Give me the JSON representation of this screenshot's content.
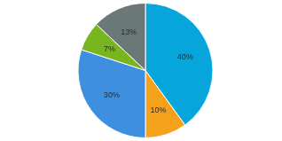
{
  "chart_data": {
    "type": "pie",
    "categories": [
      null,
      null,
      null,
      null,
      null
    ],
    "values": [
      40,
      10,
      30,
      7,
      13
    ],
    "value_labels": [
      "40%",
      "10%",
      "30%",
      "7%",
      "13%"
    ],
    "colors": [
      "#06a6dc",
      "#f6a11c",
      "#3f8fe0",
      "#79b51f",
      "#6b7878"
    ],
    "data_labels": true,
    "legend": false
  }
}
